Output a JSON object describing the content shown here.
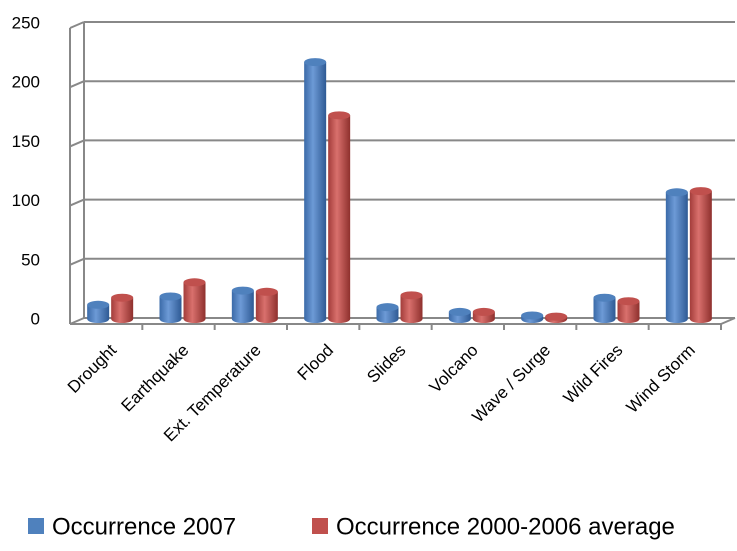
{
  "chart_data": {
    "type": "bar",
    "categories": [
      "Drought",
      "Earthquake",
      "Ext. Temperature",
      "Flood",
      "Slides",
      "Volcano",
      "Wave / Surge",
      "Wild Fires",
      "Wind Storm"
    ],
    "series": [
      {
        "name": "Occurrence  2007",
        "color": "#4f81bd",
        "values": [
          12,
          19,
          24,
          217,
          10,
          6,
          3,
          18,
          107
        ]
      },
      {
        "name": "Occurrence  2000-2006 average",
        "color": "#c0504d",
        "values": [
          18,
          31,
          23,
          172,
          20,
          6,
          2,
          15,
          108
        ]
      }
    ],
    "ylim": [
      0,
      250
    ],
    "yticks": [
      0,
      50,
      100,
      150,
      200,
      250
    ],
    "grid": true,
    "legend": "bottom"
  }
}
